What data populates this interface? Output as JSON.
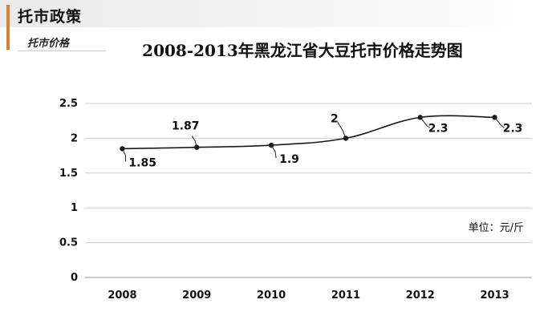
{
  "header": {
    "title": "托市政策",
    "subtitle": "托市价格"
  },
  "chart_data": {
    "type": "line",
    "title": "2008-2013年黑龙江省大豆托市价格走势图",
    "categories": [
      "2008",
      "2009",
      "2010",
      "2011",
      "2012",
      "2013"
    ],
    "values": [
      1.85,
      1.87,
      1.9,
      2,
      2.3,
      2.3
    ],
    "data_labels": [
      "1.85",
      "1.87",
      "1.9",
      "2",
      "2.3",
      "2.3"
    ],
    "ylim": [
      0,
      2.5
    ],
    "yticks": [
      "0",
      "0.5",
      "1",
      "1.5",
      "2",
      "2.5"
    ],
    "unit_label": "单位：元/斤",
    "grid": true,
    "smooth": true,
    "line_color": "#1a1a1a"
  }
}
